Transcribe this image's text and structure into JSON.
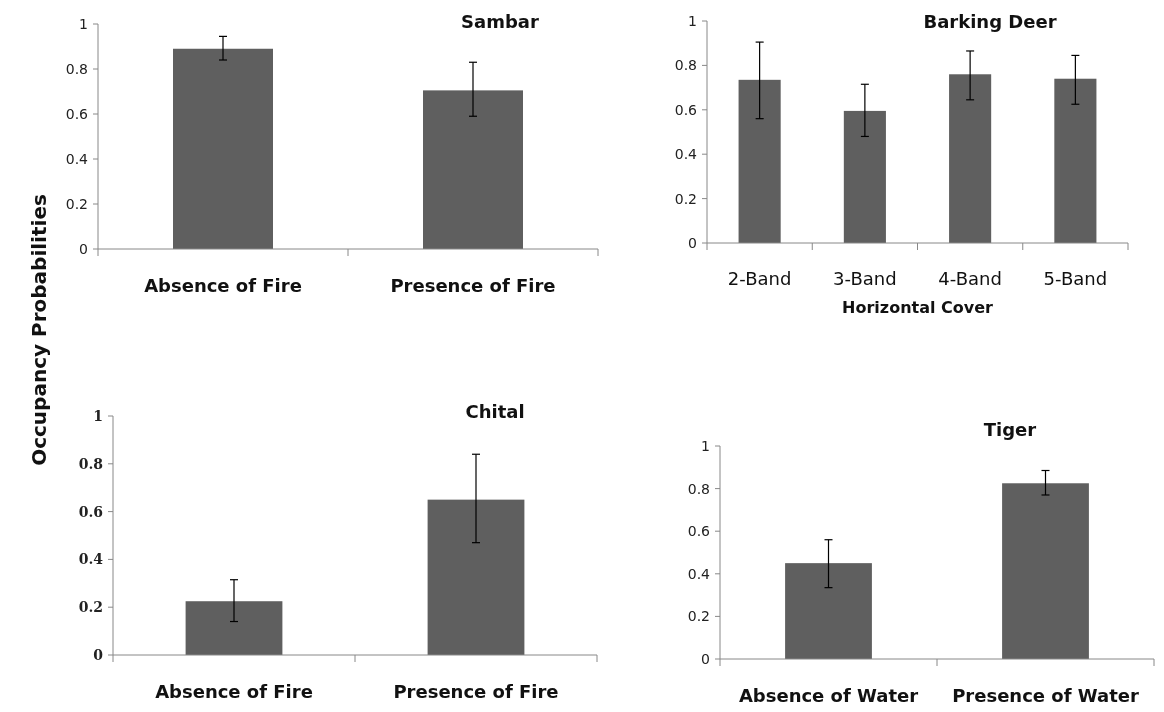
{
  "chart_data": [
    {
      "type": "bar",
      "title": "Sambar",
      "ylabel": "Occupancy Probabilities",
      "categories": [
        "Absence of Fire",
        "Presence of Fire"
      ],
      "values": [
        0.89,
        0.705
      ],
      "errors": [
        [
          0.84,
          0.945
        ],
        [
          0.59,
          0.83
        ]
      ],
      "color": "#5f5f5f",
      "ylim": [
        0,
        1
      ],
      "yticks": [
        0,
        0.2,
        0.4,
        0.6,
        0.8,
        1
      ],
      "grid": false
    },
    {
      "type": "bar",
      "title": "Barking Deer",
      "xlabel": "Horizontal Cover",
      "categories": [
        "2-Band",
        "3-Band",
        "4-Band",
        "5-Band"
      ],
      "values": [
        0.735,
        0.595,
        0.76,
        0.74
      ],
      "errors": [
        [
          0.56,
          0.905
        ],
        [
          0.48,
          0.715
        ],
        [
          0.645,
          0.865
        ],
        [
          0.625,
          0.845
        ]
      ],
      "color": "#5f5f5f",
      "ylim": [
        0,
        1
      ],
      "yticks": [
        0,
        0.2,
        0.4,
        0.6,
        0.8,
        1
      ],
      "grid": false
    },
    {
      "type": "bar",
      "title": "Chital",
      "categories": [
        "Absence of Fire",
        "Presence of Fire"
      ],
      "values": [
        0.225,
        0.65
      ],
      "errors": [
        [
          0.14,
          0.315
        ],
        [
          0.47,
          0.84
        ]
      ],
      "color": "#5f5f5f",
      "ylim": [
        0,
        1
      ],
      "yticks": [
        0,
        0.2,
        0.4,
        0.6,
        0.8,
        1
      ],
      "grid": false
    },
    {
      "type": "bar",
      "title": "Tiger",
      "categories": [
        "Absence of Water",
        "Presence of Water"
      ],
      "values": [
        0.45,
        0.825
      ],
      "errors": [
        [
          0.335,
          0.56
        ],
        [
          0.77,
          0.885
        ]
      ],
      "color": "#5f5f5f",
      "ylim": [
        0,
        1
      ],
      "yticks": [
        0,
        0.2,
        0.4,
        0.6,
        0.8,
        1
      ],
      "grid": false
    }
  ]
}
